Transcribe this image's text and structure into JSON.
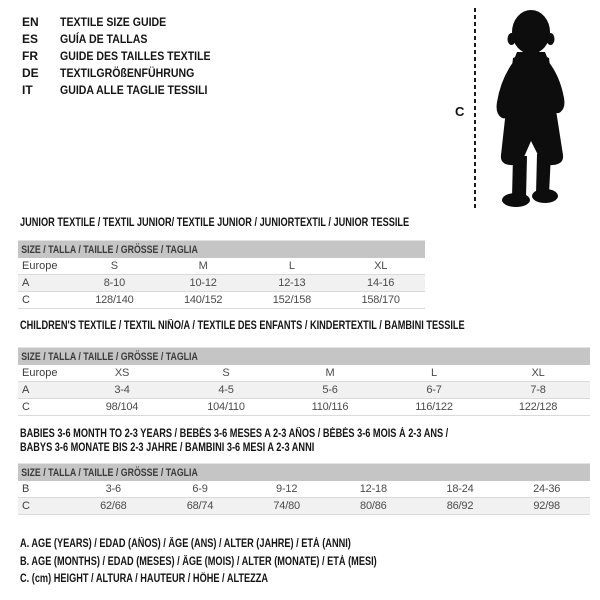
{
  "title_block": {
    "languages": [
      {
        "code": "EN",
        "label": "TEXTILE SIZE GUIDE"
      },
      {
        "code": "ES",
        "label": "GUÍA DE TALLAS"
      },
      {
        "code": "FR",
        "label": "GUIDE DES TAILLES TEXTILE"
      },
      {
        "code": "DE",
        "label": "TEXTILGRÖßENFÜHRUNG"
      },
      {
        "code": "IT",
        "label": "GUIDA ALLE TAGLIE TESSILI"
      }
    ]
  },
  "figure": {
    "icon": "baby-silhouette-icon",
    "measure_label": "C"
  },
  "sections": [
    {
      "title_lines": [
        "JUNIOR TEXTILE / TEXTIL JUNIOR/ TEXTILE JUNIOR / JUNIORTEXTIL / JUNIOR TESSILE"
      ],
      "size_header": "SIZE / TALLA / TAILLE / GRÖSSE / TAGLIA",
      "rows": [
        {
          "label": "Europe",
          "shaded": false,
          "values": [
            "S",
            "M",
            "L",
            "XL"
          ]
        },
        {
          "label": "A",
          "shaded": true,
          "values": [
            "8-10",
            "10-12",
            "12-13",
            "14-16"
          ]
        },
        {
          "label": "C",
          "shaded": false,
          "values": [
            "128/140",
            "140/152",
            "152/158",
            "158/170"
          ]
        }
      ]
    },
    {
      "title_lines": [
        "CHILDREN'S TEXTILE / TEXTIL NIÑO/A / TEXTILE DES ENFANTS / KINDERTEXTIL / BAMBINI TESSILE"
      ],
      "size_header": "SIZE / TALLA / TAILLE / GRÖSSE / TAGLIA",
      "rows": [
        {
          "label": "Europe",
          "shaded": false,
          "values": [
            "XS",
            "S",
            "M",
            "L",
            "XL"
          ]
        },
        {
          "label": "A",
          "shaded": true,
          "values": [
            "3-4",
            "4-5",
            "5-6",
            "6-7",
            "7-8"
          ]
        },
        {
          "label": "C",
          "shaded": false,
          "values": [
            "98/104",
            "104/110",
            "110/116",
            "116/122",
            "122/128"
          ]
        }
      ]
    },
    {
      "title_lines": [
        "BABIES 3-6 MONTH TO 2-3 YEARS / BEBÉS 3-6 MESES A 2-3 AÑOS / BÉBÉS 3-6 MOIS À 2-3 ANS /",
        "BABYS 3-6 MONATE BIS 2-3 JAHRE / BAMBINI 3-6 MESI A 2-3 ANNI"
      ],
      "size_header": "SIZE / TALLA / TAILLE / GRÖSSE / TAGLIA",
      "rows": [
        {
          "label": "B",
          "shaded": false,
          "values": [
            "3-6",
            "6-9",
            "9-12",
            "12-18",
            "18-24",
            "24-36"
          ]
        },
        {
          "label": "C",
          "shaded": true,
          "values": [
            "62/68",
            "68/74",
            "74/80",
            "80/86",
            "86/92",
            "92/98"
          ]
        }
      ]
    }
  ],
  "legend": {
    "lines": [
      "A. AGE (YEARS) / EDAD (AÑOS) / ÂGE (ANS) / ALTER (JAHRE) / ETÀ (ANNI)",
      "B. AGE (MONTHS) / EDAD (MESES) / ÂGE (MOIS) / ALTER (MONATE) / ETÀ (MESI)",
      "C. (cm) HEIGHT / ALTURA / HAUTEUR / HÖHE / ALTEZZA"
    ]
  },
  "colors": {
    "table_header_bg": "#c5c5c5",
    "row_shaded_bg": "#f1f1f1",
    "divider": "#dadada",
    "text_primary": "#141414",
    "text_table": "#4b4b4b",
    "silhouette": "#0d0d0d"
  }
}
